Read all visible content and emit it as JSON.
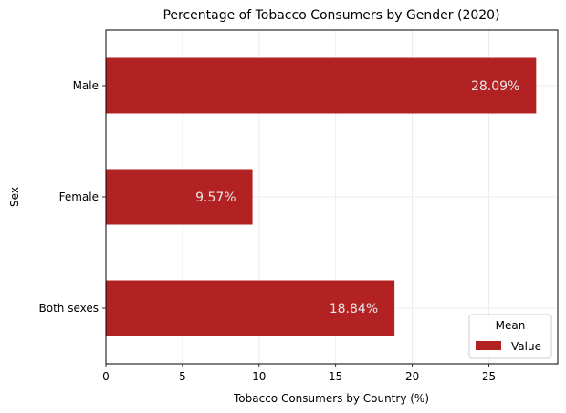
{
  "chart_data": {
    "type": "bar",
    "orientation": "horizontal",
    "title": "Percentage of Tobacco Consumers by Gender (2020)",
    "xlabel": "Tobacco Consumers by Country (%)",
    "ylabel": "Sex",
    "categories": [
      "Both sexes",
      "Female",
      "Male"
    ],
    "series": [
      {
        "name": "Value",
        "values": [
          18.84,
          9.57,
          28.09
        ],
        "labels": [
          "18.84%",
          "9.57%",
          "28.09%"
        ],
        "color": "#b22222"
      }
    ],
    "xlim": [
      0,
      29.5
    ],
    "xticks": [
      0,
      5,
      10,
      15,
      20,
      25
    ],
    "grid": true,
    "legend": {
      "title": "Mean",
      "position": "bottom-right"
    }
  }
}
